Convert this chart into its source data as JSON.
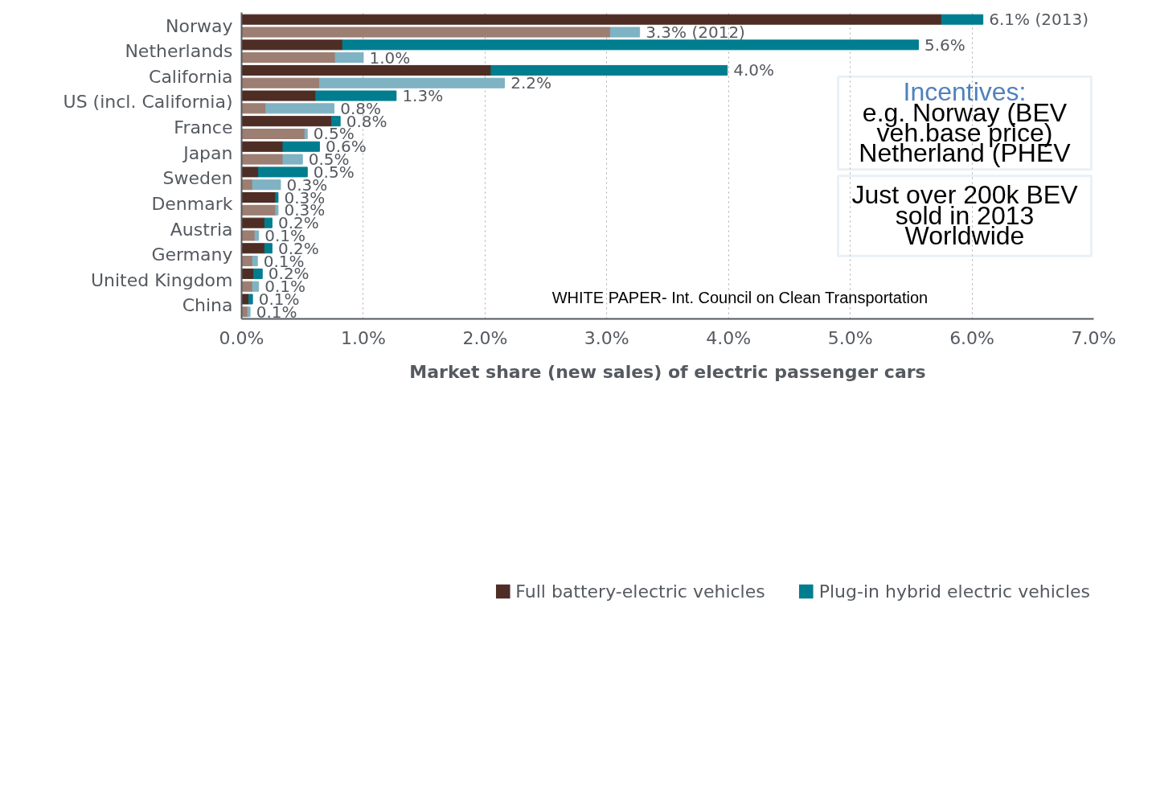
{
  "chart_data": {
    "type": "bar",
    "orientation": "horizontal",
    "stacked": true,
    "categories": [
      "Norway",
      null,
      "Netherlands",
      null,
      "California",
      null,
      "US (incl. California)",
      null,
      "France",
      null,
      "Japan",
      null,
      "Sweden",
      null,
      "Denmark",
      null,
      "Austria",
      null,
      "Germany",
      null,
      "United Kingdom",
      null,
      "China",
      null
    ],
    "series": [
      {
        "name": "Full battery-electric vehicles",
        "color": "#4e2d24",
        "colors": [
          "#4e2d24",
          "#9c7e72",
          "#4e2d24",
          "#9c7e72",
          "#4e2d24",
          "#9c7e72",
          "#4e2d24",
          "#9c7e72",
          "#4e2d24",
          "#9c7e72",
          "#4e2d24",
          "#9c7e72",
          "#4e2d24",
          "#9c7e72",
          "#4e2d24",
          "#9c7e72",
          "#4e2d24",
          "#9c7e72",
          "#4e2d24",
          "#9c7e72",
          "#4e2d24",
          "#9c7e72",
          "#4e2d24",
          "#9c7e72"
        ],
        "values": [
          5.75,
          3.03,
          0.83,
          0.77,
          2.05,
          0.64,
          0.61,
          0.2,
          0.74,
          0.52,
          0.34,
          0.34,
          0.14,
          0.09,
          0.28,
          0.28,
          0.19,
          0.11,
          0.19,
          0.09,
          0.1,
          0.09,
          0.06,
          0.05
        ]
      },
      {
        "name": "Plug-in hybrid electric vehicles",
        "color": "#007d8f",
        "colors": [
          "#007d8f",
          "#7fb2c3",
          "#007d8f",
          "#7fb2c3",
          "#007d8f",
          "#7fb2c3",
          "#007d8f",
          "#7fb2c3",
          "#007d8f",
          "#7fb2c3",
          "#007d8f",
          "#7fb2c3",
          "#007d8f",
          "#7fb2c3",
          "#007d8f",
          "#7fb2c3",
          "#007d8f",
          "#7fb2c3",
          "#007d8f",
          "#7fb2c3",
          "#007d8f",
          "#7fb2c3",
          "#007d8f",
          "#7fb2c3"
        ],
        "values": [
          0.34,
          0.24,
          4.73,
          0.23,
          1.94,
          1.52,
          0.66,
          0.56,
          0.07,
          0.02,
          0.3,
          0.16,
          0.4,
          0.23,
          0.02,
          0.02,
          0.06,
          0.03,
          0.06,
          0.04,
          0.07,
          0.05,
          0.03,
          0.02
        ]
      }
    ],
    "totals": [
      "6.1% (2013)",
      "3.3% (2012)",
      "5.6%",
      "1.0%",
      "4.0%",
      "2.2%",
      "1.3%",
      "0.8%",
      "0.8%",
      "0.5%",
      "0.6%",
      "0.5%",
      "0.5%",
      "0.3%",
      "0.3%",
      "0.3%",
      "0.2%",
      "0.1%",
      "0.2%",
      "0.1%",
      "0.2%",
      "0.1%",
      "0.1%",
      "0.1%"
    ],
    "xlim": [
      0,
      7
    ],
    "xticks": [
      {
        "value": 0,
        "label": "0.0%"
      },
      {
        "value": 1,
        "label": "1.0%"
      },
      {
        "value": 2,
        "label": "2.0%"
      },
      {
        "value": 3,
        "label": "3.0%"
      },
      {
        "value": 4,
        "label": "4.0%"
      },
      {
        "value": 5,
        "label": "5.0%"
      },
      {
        "value": 6,
        "label": "6.0%"
      },
      {
        "value": 7,
        "label": "7.0%"
      }
    ],
    "xlabel": "Market share (new sales) of electric passenger cars",
    "grid": "x",
    "legend": "bottom",
    "annotations": [
      "Incentives:",
      "e.g. Norway (BEV",
      "veh.base price)",
      "Netherland (PHEV",
      "Just over 200k BEV",
      "sold in 2013",
      "Worldwide",
      "WHITE PAPER- Int. Council on Clean Transportation"
    ]
  }
}
